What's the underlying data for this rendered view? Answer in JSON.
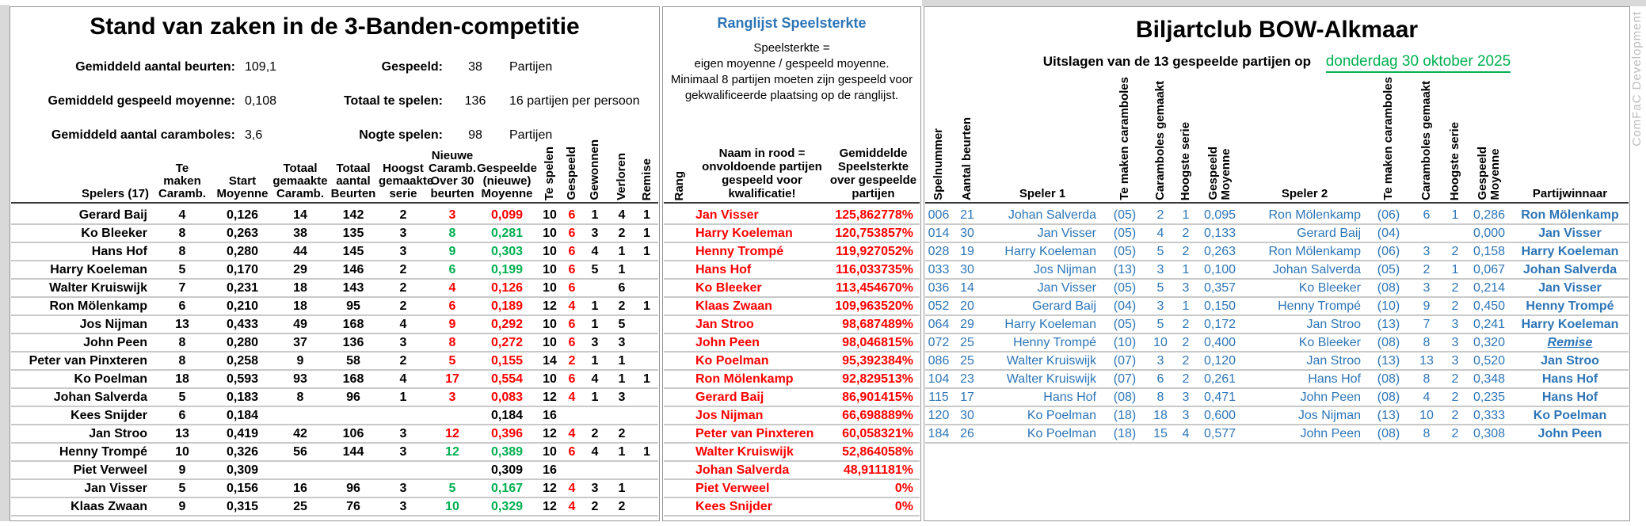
{
  "watermark": "ComFaC Development",
  "colors": {
    "accent_blue": "#2E75B6",
    "negative_red": "#FF0000",
    "positive_green": "#00B050"
  },
  "standings": {
    "title": "Stand van zaken in de 3-Banden-competitie",
    "summary_left": [
      {
        "label": "Gemiddeld aantal beurten:",
        "value": "109,1"
      },
      {
        "label": "Gemiddeld gespeeld moyenne:",
        "value": "0,108"
      },
      {
        "label": "Gemiddeld aantal caramboles:",
        "value": "3,6"
      }
    ],
    "summary_right": [
      {
        "label": "Gespeeld:",
        "value": "38",
        "note": "Partijen"
      },
      {
        "label": "Totaal te spelen:",
        "value": "136",
        "note": "16 partijen per persoon"
      },
      {
        "label": "Nogte spelen:",
        "value": "98",
        "note": "Partijen"
      }
    ],
    "columns": {
      "spelers": "Spelers (17)",
      "te_maken": "Te\nmaken\nCaramb.",
      "start_moyenne": "Start\nMoyenne",
      "totaal_caramboles": "Totaal\ngemaakte\nCaramb.",
      "totaal_beurten": "Totaal\naantal\nBeurten",
      "hoogste_serie": "Hoogst\ngemaakte\nserie",
      "nieuwe_caramboles": "Nieuwe\nCaramb.\nOver 30\nbeurten",
      "gespeelde_moyenne": "Gespeelde\n(nieuwe)\nMoyenne",
      "te_spelen": "Te spelen",
      "gespeeld": "Gespeeld",
      "gewonnen": "Gewonnen",
      "verloren": "Verloren",
      "remise": "Remise"
    },
    "rows": [
      [
        "Gerard Baij",
        "4",
        "0,126",
        "14",
        "142",
        "2",
        "3",
        "0,099",
        "10",
        "6",
        "1",
        "4",
        "1",
        "down"
      ],
      [
        "Ko Bleeker",
        "8",
        "0,263",
        "38",
        "135",
        "3",
        "8",
        "0,281",
        "10",
        "6",
        "3",
        "2",
        "1",
        "up"
      ],
      [
        "Hans Hof",
        "8",
        "0,280",
        "44",
        "145",
        "3",
        "9",
        "0,303",
        "10",
        "6",
        "4",
        "1",
        "1",
        "up"
      ],
      [
        "Harry Koeleman",
        "5",
        "0,170",
        "29",
        "146",
        "2",
        "6",
        "0,199",
        "10",
        "6",
        "5",
        "1",
        "",
        "up"
      ],
      [
        "Walter Kruiswijk",
        "7",
        "0,231",
        "18",
        "143",
        "2",
        "4",
        "0,126",
        "10",
        "6",
        "",
        "6",
        "",
        "down"
      ],
      [
        "Ron Mölenkamp",
        "6",
        "0,210",
        "18",
        "95",
        "2",
        "6",
        "0,189",
        "12",
        "4",
        "1",
        "2",
        "1",
        "down"
      ],
      [
        "Jos Nijman",
        "13",
        "0,433",
        "49",
        "168",
        "4",
        "9",
        "0,292",
        "10",
        "6",
        "1",
        "5",
        "",
        "down"
      ],
      [
        "John Peen",
        "8",
        "0,280",
        "37",
        "136",
        "3",
        "8",
        "0,272",
        "10",
        "6",
        "3",
        "3",
        "",
        "down"
      ],
      [
        "Peter van Pinxteren",
        "8",
        "0,258",
        "9",
        "58",
        "2",
        "5",
        "0,155",
        "14",
        "2",
        "1",
        "1",
        "",
        "down"
      ],
      [
        "Ko Poelman",
        "18",
        "0,593",
        "93",
        "168",
        "4",
        "17",
        "0,554",
        "10",
        "6",
        "4",
        "1",
        "1",
        "down"
      ],
      [
        "Johan Salverda",
        "5",
        "0,183",
        "8",
        "96",
        "1",
        "3",
        "0,083",
        "12",
        "4",
        "1",
        "3",
        "",
        "down"
      ],
      [
        "Kees Snijder",
        "6",
        "0,184",
        "",
        "",
        "",
        "",
        "0,184",
        "16",
        "",
        "",
        "",
        "",
        "none"
      ],
      [
        "Jan Stroo",
        "13",
        "0,419",
        "42",
        "106",
        "3",
        "12",
        "0,396",
        "12",
        "4",
        "2",
        "2",
        "",
        "down"
      ],
      [
        "Henny Trompé",
        "10",
        "0,326",
        "56",
        "144",
        "3",
        "12",
        "0,389",
        "10",
        "6",
        "4",
        "1",
        "1",
        "up"
      ],
      [
        "Piet Verweel",
        "9",
        "0,309",
        "",
        "",
        "",
        "",
        "0,309",
        "16",
        "",
        "",
        "",
        "",
        "none"
      ],
      [
        "Jan Visser",
        "5",
        "0,156",
        "16",
        "96",
        "3",
        "5",
        "0,167",
        "12",
        "4",
        "3",
        "1",
        "",
        "up"
      ],
      [
        "Klaas Zwaan",
        "9",
        "0,315",
        "25",
        "76",
        "3",
        "10",
        "0,329",
        "12",
        "4",
        "2",
        "2",
        "",
        "up"
      ]
    ]
  },
  "ranking": {
    "title": "Ranglijst Speelsterkte",
    "description": "Speelsterkte =\neigen moyenne / gespeeld moyenne.\nMinimaal 8 partijen moeten zijn gespeeld voor\ngekwalificeerde plaatsing op de ranglijst.",
    "columns": {
      "rang": "Rang",
      "naam_note": "Naam in rood =\nonvoldoende partijen\ngespeeld voor\nkwalificatie!",
      "speelsterkte": "Gemiddelde\nSpeelsterkte\nover gespeelde\npartijen"
    },
    "rows": [
      [
        "Jan Visser",
        "125,862778%"
      ],
      [
        "Harry Koeleman",
        "120,753857%"
      ],
      [
        "Henny Trompé",
        "119,927052%"
      ],
      [
        "Hans Hof",
        "116,033735%"
      ],
      [
        "Ko Bleeker",
        "113,454670%"
      ],
      [
        "Klaas Zwaan",
        "109,963520%"
      ],
      [
        "Jan Stroo",
        "98,687489%"
      ],
      [
        "John Peen",
        "98,046815%"
      ],
      [
        "Ko Poelman",
        "95,392384%"
      ],
      [
        "Ron Mölenkamp",
        "92,829513%"
      ],
      [
        "Gerard Baij",
        "86,901415%"
      ],
      [
        "Jos Nijman",
        "66,698889%"
      ],
      [
        "Peter van Pinxteren",
        "60,058321%"
      ],
      [
        "Walter Kruiswijk",
        "52,864058%"
      ],
      [
        "Johan Salverda",
        "48,911181%"
      ],
      [
        "Piet Verweel",
        "0%"
      ],
      [
        "Kees Snijder",
        "0%"
      ]
    ]
  },
  "results": {
    "title": "Biljartclub BOW-Alkmaar",
    "subtitle_prefix": "Uitslagen van de 13 gespeelde partijen op",
    "date": "donderdag 30 oktober 2025",
    "columns": {
      "spelnummer": "Spelnummer",
      "aantal_beurten": "Aantal beurten",
      "speler1": "Speler 1",
      "te_maken": "Te maken caramboles",
      "gemaakt": "Caramboles gemaakt",
      "hoogste_serie": "Hoogste serie",
      "moyenne": "Gespeeld\nMoyenne",
      "speler2": "Speler 2",
      "partijwinnaar": "Partijwinnaar"
    },
    "rows": [
      [
        "006",
        "21",
        "Johan Salverda",
        "(05)",
        "2",
        "1",
        "0,095",
        "Ron Mölenkamp",
        "(06)",
        "6",
        "1",
        "0,286",
        "Ron Mölenkamp"
      ],
      [
        "014",
        "30",
        "Jan Visser",
        "(05)",
        "4",
        "2",
        "0,133",
        "Gerard Baij",
        "(04)",
        "",
        "",
        "0,000",
        "Jan Visser"
      ],
      [
        "028",
        "19",
        "Harry Koeleman",
        "(05)",
        "5",
        "2",
        "0,263",
        "Ron Mölenkamp",
        "(06)",
        "3",
        "2",
        "0,158",
        "Harry Koeleman"
      ],
      [
        "033",
        "30",
        "Jos Nijman",
        "(13)",
        "3",
        "1",
        "0,100",
        "Johan Salverda",
        "(05)",
        "2",
        "1",
        "0,067",
        "Johan Salverda"
      ],
      [
        "036",
        "14",
        "Jan Visser",
        "(05)",
        "5",
        "3",
        "0,357",
        "Ko Bleeker",
        "(08)",
        "3",
        "2",
        "0,214",
        "Jan Visser"
      ],
      [
        "052",
        "20",
        "Gerard Baij",
        "(04)",
        "3",
        "1",
        "0,150",
        "Henny Trompé",
        "(10)",
        "9",
        "2",
        "0,450",
        "Henny Trompé"
      ],
      [
        "064",
        "29",
        "Harry Koeleman",
        "(05)",
        "5",
        "2",
        "0,172",
        "Jan Stroo",
        "(13)",
        "7",
        "3",
        "0,241",
        "Harry Koeleman"
      ],
      [
        "072",
        "25",
        "Henny Trompé",
        "(10)",
        "10",
        "2",
        "0,400",
        "Ko Bleeker",
        "(08)",
        "8",
        "3",
        "0,320",
        "Remise"
      ],
      [
        "086",
        "25",
        "Walter Kruiswijk",
        "(07)",
        "3",
        "2",
        "0,120",
        "Jan Stroo",
        "(13)",
        "13",
        "3",
        "0,520",
        "Jan Stroo"
      ],
      [
        "104",
        "23",
        "Walter Kruiswijk",
        "(07)",
        "6",
        "2",
        "0,261",
        "Hans Hof",
        "(08)",
        "8",
        "2",
        "0,348",
        "Hans Hof"
      ],
      [
        "115",
        "17",
        "Hans Hof",
        "(08)",
        "8",
        "3",
        "0,471",
        "John Peen",
        "(08)",
        "4",
        "2",
        "0,235",
        "Hans Hof"
      ],
      [
        "120",
        "30",
        "Ko Poelman",
        "(18)",
        "18",
        "3",
        "0,600",
        "Jos Nijman",
        "(13)",
        "10",
        "2",
        "0,333",
        "Ko Poelman"
      ],
      [
        "184",
        "26",
        "Ko Poelman",
        "(18)",
        "15",
        "4",
        "0,577",
        "John Peen",
        "(08)",
        "8",
        "2",
        "0,308",
        "John Peen"
      ]
    ]
  }
}
